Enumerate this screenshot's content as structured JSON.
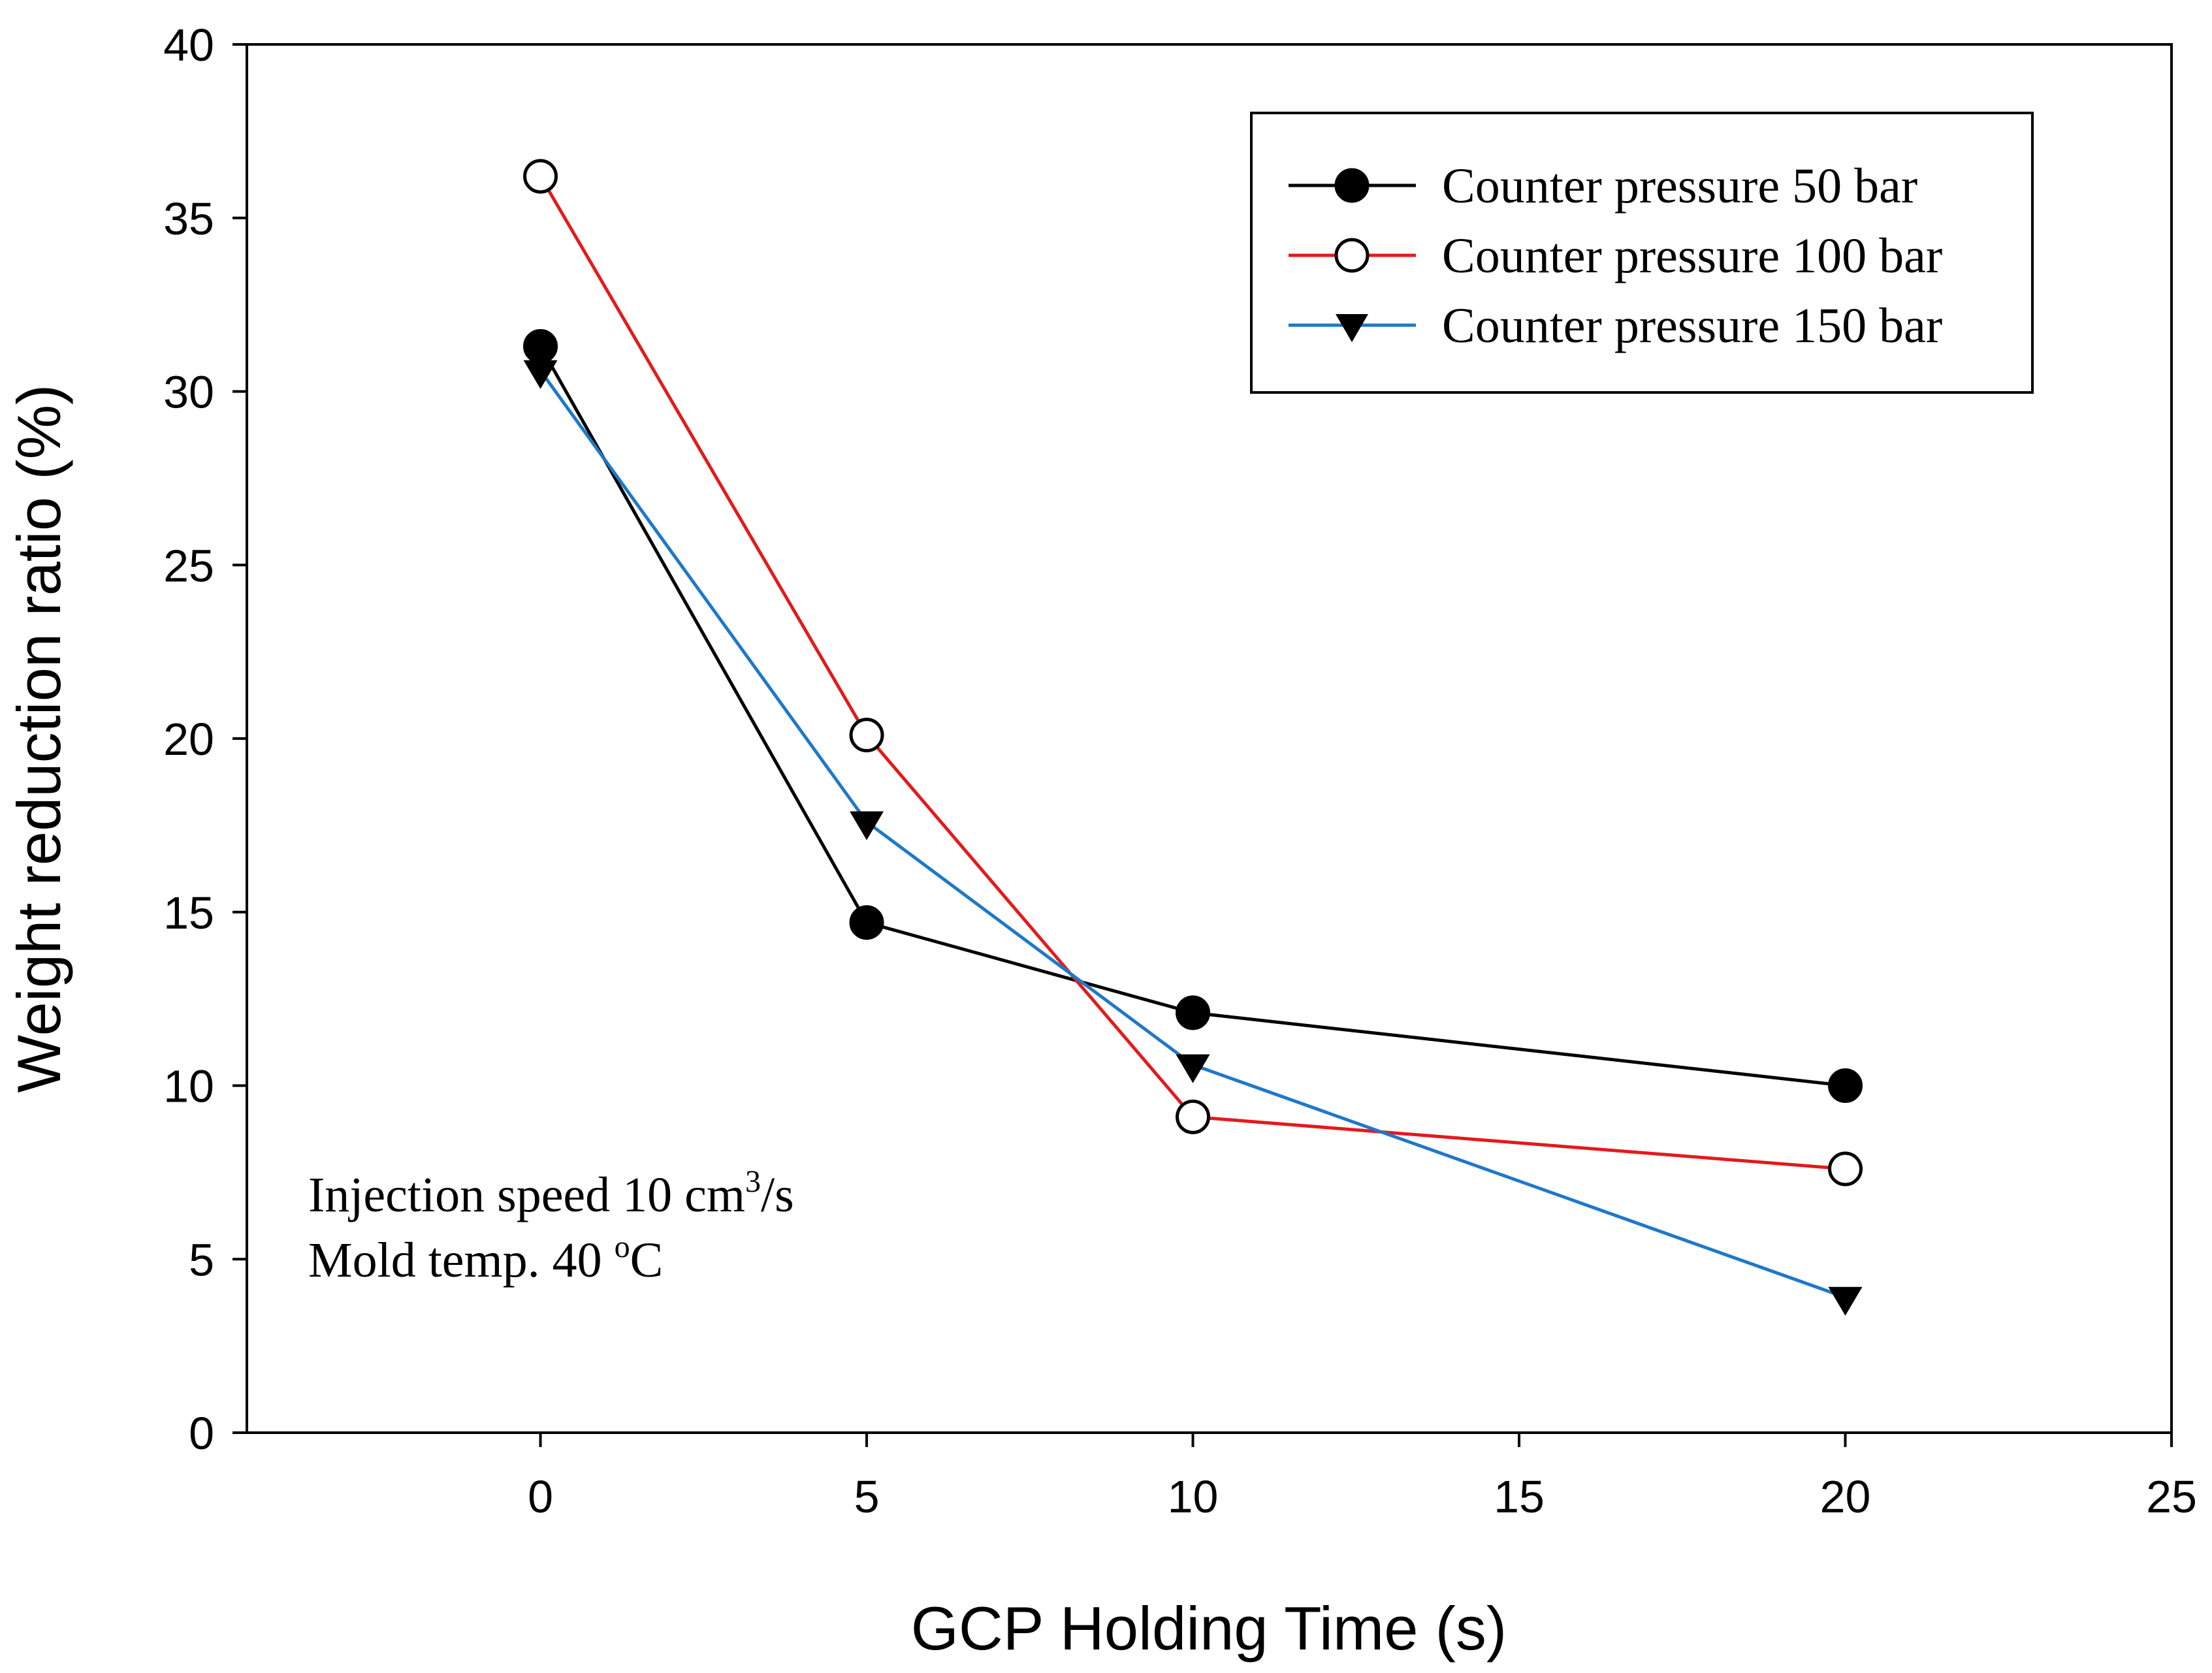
{
  "chart_data": {
    "type": "line",
    "title": "",
    "xlabel": "GCP Holding Time (s)",
    "ylabel": "Weight reduction ratio (%)",
    "xlim": [
      -4.5,
      25
    ],
    "ylim": [
      0,
      40
    ],
    "xticks": [
      0,
      5,
      10,
      15,
      20,
      25
    ],
    "yticks": [
      0,
      5,
      10,
      15,
      20,
      25,
      30,
      35,
      40
    ],
    "x": [
      0,
      5,
      10,
      20
    ],
    "series": [
      {
        "name": "Counter pressure 50 bar",
        "values": [
          31.3,
          14.7,
          12.1,
          10.0
        ],
        "color": "#000000",
        "marker": "filled-circle"
      },
      {
        "name": "Counter pressure 100 bar",
        "values": [
          36.2,
          20.1,
          9.1,
          7.6
        ],
        "color": "#e31a1c",
        "marker": "open-circle"
      },
      {
        "name": "Counter pressure 150 bar",
        "values": [
          30.6,
          17.6,
          10.6,
          3.9
        ],
        "color": "#1f78c8",
        "marker": "filled-triangle-down"
      }
    ],
    "legend": {
      "position": "top-right"
    },
    "annotations": {
      "line1_prefix": "Injection speed 10 cm",
      "line1_sup": "3",
      "line1_suffix": "/s",
      "line2_prefix": "Mold temp. 40 ",
      "line2_sup": "o",
      "line2_suffix": "C"
    }
  }
}
